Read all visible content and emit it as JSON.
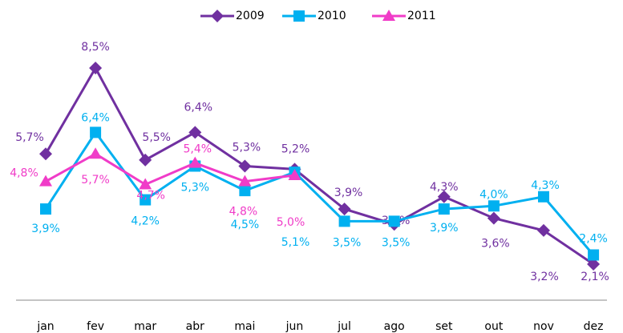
{
  "chart_data": {
    "type": "line",
    "categories": [
      "jan",
      "fev",
      "mar",
      "abr",
      "mai",
      "jun",
      "jul",
      "ago",
      "set",
      "out",
      "nov",
      "dez"
    ],
    "series": [
      {
        "name": "2009",
        "color": "#7030a0",
        "marker": "diamond",
        "values": [
          5.7,
          8.5,
          5.5,
          6.4,
          5.3,
          5.2,
          3.9,
          3.4,
          4.3,
          3.6,
          3.2,
          2.1
        ],
        "value_labels": [
          "5,7%",
          "8,5%",
          "5,5%",
          "6,4%",
          "5,3%",
          "5,2%",
          "3,9%",
          "3,4%",
          "4,3%",
          "3,6%",
          "3,2%",
          "2,1%"
        ]
      },
      {
        "name": "2010",
        "color": "#00b0f0",
        "marker": "square",
        "values": [
          3.9,
          6.4,
          4.2,
          5.3,
          4.5,
          5.1,
          3.5,
          3.5,
          3.9,
          4.0,
          4.3,
          2.4
        ],
        "value_labels": [
          "3,9%",
          "6,4%",
          "4,2%",
          "5,3%",
          "4,5%",
          "5,1%",
          "3,5%",
          "3,5%",
          "3,9%",
          "4,0%",
          "4,3%",
          "2,4%"
        ]
      },
      {
        "name": "2011",
        "color": "#f03cc8",
        "marker": "triangle",
        "values": [
          4.8,
          5.7,
          4.7,
          5.4,
          4.8,
          5.0,
          null,
          null,
          null,
          null,
          null,
          null
        ],
        "value_labels": [
          "4,8%",
          "5,7%",
          "4,7%",
          "5,4%",
          "4,8%",
          "5,0%",
          null,
          null,
          null,
          null,
          null,
          null
        ]
      }
    ],
    "legend": "top"
  }
}
